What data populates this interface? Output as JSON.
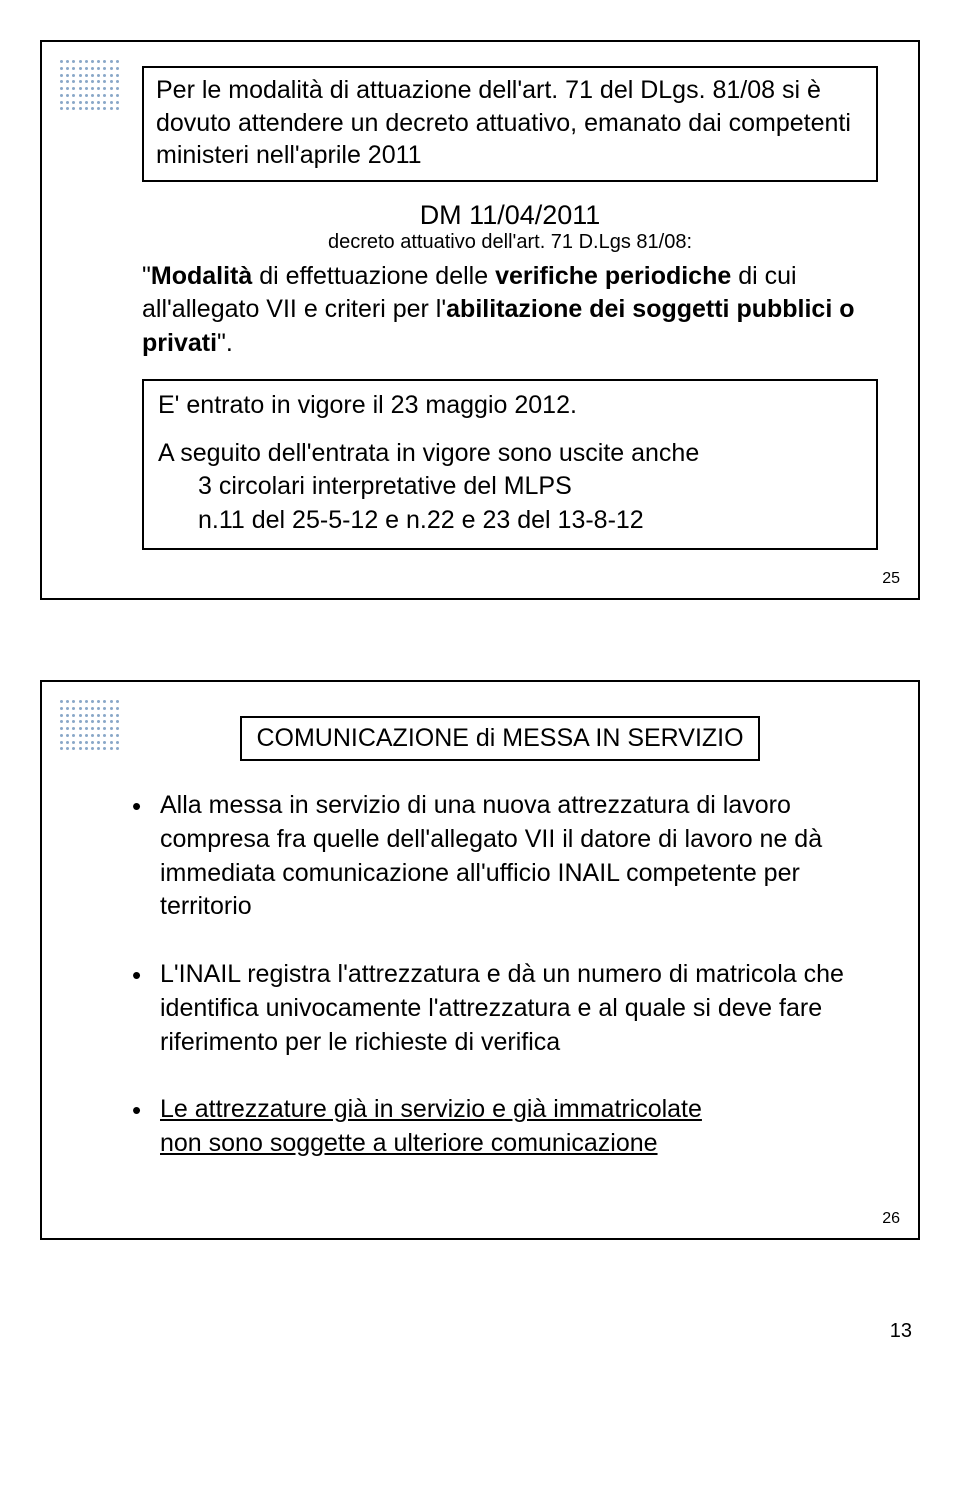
{
  "slide1": {
    "box1_line1": "Per le modalità di attuazione dell'art. 71 del DLgs.",
    "box1_line2": "81/08 si è dovuto attendere un decreto attuativo, emanato dai competenti ministeri nell'aprile 2011",
    "dm_title": "DM 11/04/2011",
    "dm_sub": "decreto attuativo dell'art. 71 D.Lgs 81/08:",
    "quote_prefix": "\"",
    "quote_bold1": "Modalità",
    "quote_mid1": " di effettuazione delle ",
    "quote_bold2": "verifiche periodiche",
    "quote_mid2": " di cui all'allegato VII e criteri per l'",
    "quote_bold3": "abilitazione dei soggetti pubblici o privati",
    "quote_suffix": "\".",
    "box2_p1": "E' entrato in vigore il 23 maggio 2012.",
    "box2_p2a": "A seguito dell'entrata in vigore sono uscite anche",
    "box2_p2b": "3 circolari interpretative del MLPS",
    "box2_p2c": "n.11 del 25-5-12 e n.22 e 23 del 13-8-12",
    "num": "25"
  },
  "slide2": {
    "title": "COMUNICAZIONE di MESSA IN SERVIZIO",
    "b1": "Alla messa in servizio di una nuova attrezzatura di lavoro compresa fra quelle dell'allegato VII il datore di lavoro ne dà immediata comunicazione all'ufficio INAIL competente per territorio",
    "b2": "L'INAIL registra l'attrezzatura e dà un numero di matricola che identifica univocamente l'attrezzatura e al quale si deve fare riferimento per le richieste di verifica",
    "b3a": "Le attrezzature già in servizio e già immatricolate",
    "b3b": "non sono soggette a ulteriore comunicazione",
    "num": "26"
  },
  "page": "13",
  "colors": {
    "dot": "#8aa8c8",
    "text": "#000000",
    "border": "#000000",
    "bg": "#ffffff"
  }
}
